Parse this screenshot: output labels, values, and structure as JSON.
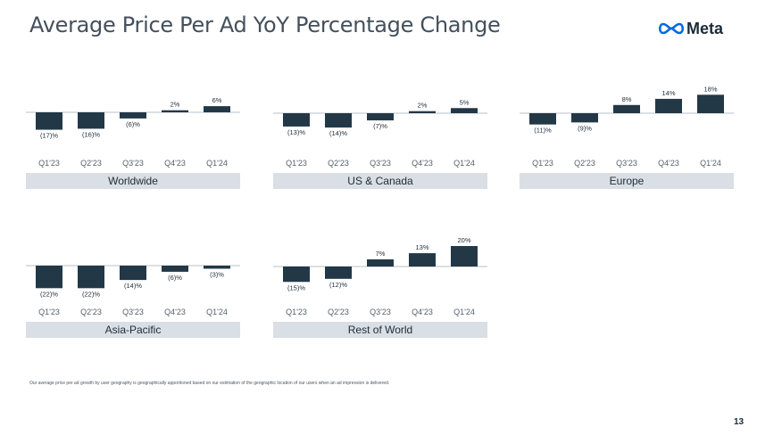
{
  "title": "Average Price Per Ad YoY Percentage Change",
  "logo": {
    "text": "Meta",
    "icon": "meta-infinity-icon"
  },
  "footnote": "Our average price per ad growth by user geography is geographically apportioned based on our estimation of the geographic location of our users when an ad impression is delivered.",
  "page_number": "13",
  "colors": {
    "bar": "#233847",
    "band": "#d9dfe4",
    "axis": "#b9c2c9",
    "text": "#1c2b39"
  },
  "chart_data": [
    {
      "type": "bar",
      "title": "Worldwide",
      "categories": [
        "Q1'23",
        "Q2'23",
        "Q3'23",
        "Q4'23",
        "Q1'24"
      ],
      "values": [
        -17,
        -16,
        -6,
        2,
        6
      ],
      "labels": [
        "(17)%",
        "(16)%",
        "(6)%",
        "2%",
        "6%"
      ]
    },
    {
      "type": "bar",
      "title": "US & Canada",
      "categories": [
        "Q1'23",
        "Q2'23",
        "Q3'23",
        "Q4'23",
        "Q1'24"
      ],
      "values": [
        -13,
        -14,
        -7,
        2,
        5
      ],
      "labels": [
        "(13)%",
        "(14)%",
        "(7)%",
        "2%",
        "5%"
      ]
    },
    {
      "type": "bar",
      "title": "Europe",
      "categories": [
        "Q1'23",
        "Q2'23",
        "Q3'23",
        "Q4'23",
        "Q1'24"
      ],
      "values": [
        -11,
        -9,
        8,
        14,
        18
      ],
      "labels": [
        "(11)%",
        "(9)%",
        "8%",
        "14%",
        "18%"
      ]
    },
    {
      "type": "bar",
      "title": "Asia-Pacific",
      "categories": [
        "Q1'23",
        "Q2'23",
        "Q3'23",
        "Q4'23",
        "Q1'24"
      ],
      "values": [
        -22,
        -22,
        -14,
        -6,
        -3
      ],
      "labels": [
        "(22)%",
        "(22)%",
        "(14)%",
        "(6)%",
        "(3)%"
      ]
    },
    {
      "type": "bar",
      "title": "Rest of World",
      "categories": [
        "Q1'23",
        "Q2'23",
        "Q3'23",
        "Q4'23",
        "Q1'24"
      ],
      "values": [
        -15,
        -12,
        7,
        13,
        20
      ],
      "labels": [
        "(15)%",
        "(12)%",
        "7%",
        "13%",
        "20%"
      ]
    }
  ]
}
